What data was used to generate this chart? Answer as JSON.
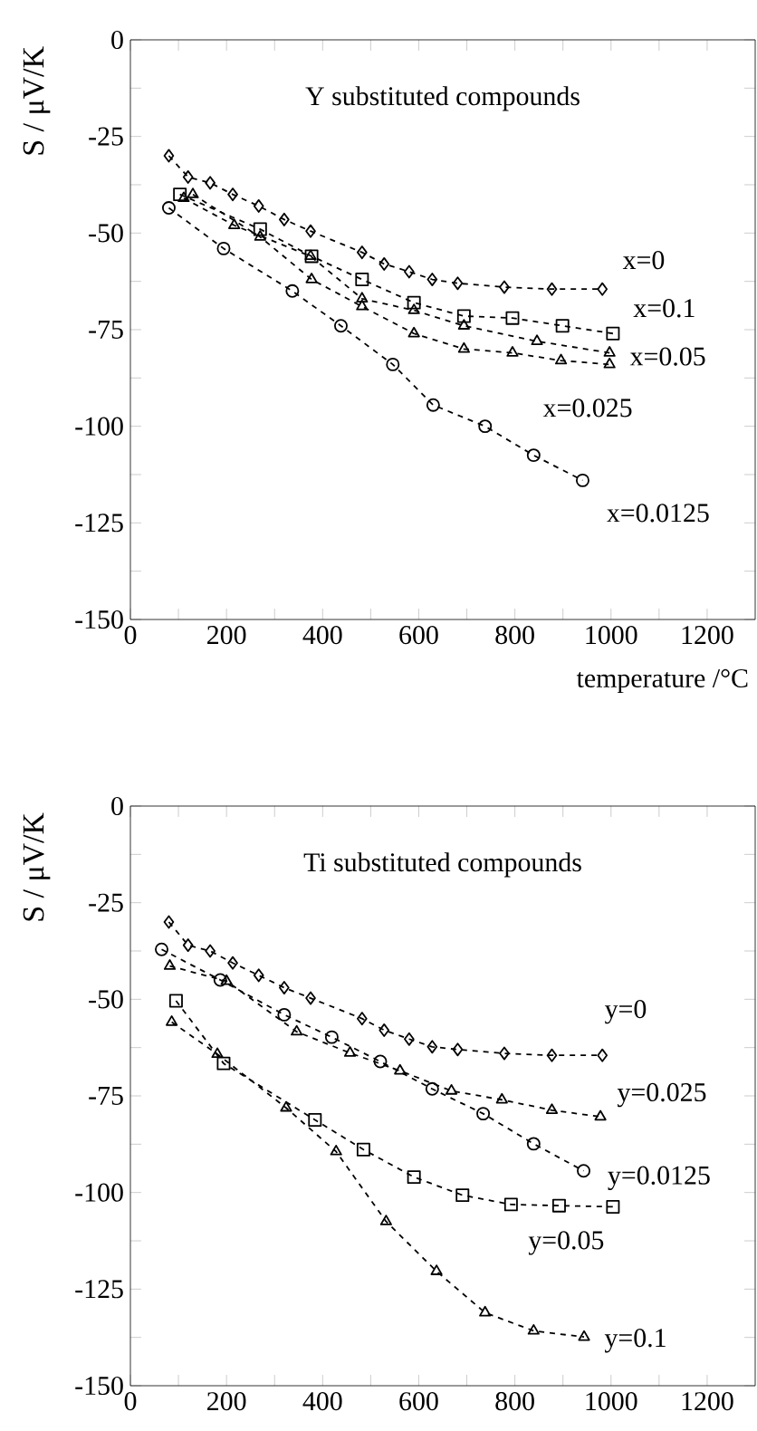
{
  "chart_data": [
    {
      "type": "line",
      "title": "Y substituted compounds",
      "xlabel": "temperature /°C",
      "ylabel": "S / μV/K",
      "xlim": [
        0,
        1300
      ],
      "ylim": [
        -150,
        0
      ],
      "xticks": [
        0,
        {
          "value": 100,
          "label": null
        },
        200,
        {
          "value": 300,
          "label": null
        },
        400,
        {
          "value": 500,
          "label": null
        },
        600,
        {
          "value": 700,
          "label": null
        },
        800,
        {
          "value": 900,
          "label": null
        },
        1000,
        {
          "value": 1100,
          "label": null
        },
        1200
      ],
      "yticks": [
        -150,
        {
          "value": -137.5,
          "label": null
        },
        -125,
        {
          "value": -112.5,
          "label": null
        },
        -100,
        {
          "value": -87.5,
          "label": null
        },
        -75,
        {
          "value": -62.5,
          "label": null
        },
        -50,
        {
          "value": -37.5,
          "label": null
        },
        -25,
        {
          "value": -12.5,
          "label": null
        },
        0
      ],
      "grid": false,
      "legend": false,
      "line_style": "dashed",
      "series": [
        {
          "name": "x=0",
          "color": "#000000",
          "marker": "diamond",
          "x": [
            80,
            120,
            166,
            213,
            267,
            320,
            375,
            482,
            528,
            580,
            628,
            681,
            778,
            877,
            982
          ],
          "values": [
            -30,
            -35.5,
            -37,
            -40,
            -43,
            -46.5,
            -49.5,
            -55,
            -58,
            -60,
            -62,
            -63,
            -64,
            -64.5,
            -64.5
          ]
        },
        {
          "name": "x=0.1",
          "color": "#000000",
          "marker": "square",
          "x": [
            103,
            270,
            377,
            482,
            590,
            694,
            795,
            899,
            1004
          ],
          "values": [
            -40,
            -49,
            -56,
            -62,
            -68,
            -71.5,
            -72,
            -74,
            -76
          ]
        },
        {
          "name": "x=0.05",
          "color": "#000000",
          "marker": "triangle",
          "x": [
            111,
            216,
            375,
            482,
            590,
            694,
            846,
            997
          ],
          "values": [
            -41,
            -48,
            -56,
            -67,
            -70,
            -74,
            -78,
            -81
          ]
        },
        {
          "name": "x=0.025",
          "color": "#000000",
          "marker": "triangle",
          "x": [
            130,
            270,
            377,
            482,
            590,
            694,
            795,
            896,
            997
          ],
          "values": [
            -40,
            -51,
            -62,
            -69,
            -76,
            -80,
            -81,
            -83,
            -84
          ]
        },
        {
          "name": "x=0.0125",
          "color": "#000000",
          "marker": "circle",
          "x": [
            80,
            194,
            337,
            438,
            546,
            630,
            738,
            839,
            941
          ],
          "values": [
            -43.5,
            -54,
            -65,
            -74,
            -84,
            -94.5,
            -100,
            -107.5,
            -114
          ]
        }
      ]
    },
    {
      "type": "line",
      "title": "Ti substituted compounds",
      "ylabel": "S / μV/K",
      "xlim": [
        0,
        1300
      ],
      "ylim": [
        -150,
        0
      ],
      "xticks": [
        0,
        {
          "value": 100,
          "label": null
        },
        200,
        {
          "value": 300,
          "label": null
        },
        400,
        {
          "value": 500,
          "label": null
        },
        600,
        {
          "value": 700,
          "label": null
        },
        800,
        {
          "value": 900,
          "label": null
        },
        1000,
        {
          "value": 1100,
          "label": null
        },
        1200
      ],
      "yticks": [
        -150,
        {
          "value": -137.5,
          "label": null
        },
        -125,
        {
          "value": -112.5,
          "label": null
        },
        -100,
        {
          "value": -87.5,
          "label": null
        },
        -75,
        {
          "value": -62.5,
          "label": null
        },
        -50,
        {
          "value": -37.5,
          "label": null
        },
        -25,
        {
          "value": -12.5,
          "label": null
        },
        0
      ],
      "grid": false,
      "legend": false,
      "line_style": "dashed",
      "series": [
        {
          "name": "y=0",
          "color": "#000000",
          "marker": "diamond",
          "x": [
            80,
            120,
            166,
            213,
            267,
            320,
            375,
            482,
            528,
            580,
            628,
            681,
            778,
            877,
            982
          ],
          "values": [
            -30,
            -36,
            -37.5,
            -40.6,
            -43.8,
            -47,
            -49.7,
            -55,
            -58,
            -60.3,
            -62.3,
            -63,
            -64,
            -64.5,
            -64.5
          ]
        },
        {
          "name": "y=0.025",
          "color": "#000000",
          "marker": "triangle",
          "x": [
            82,
            200,
            346,
            457,
            561,
            668,
            773,
            877,
            978
          ],
          "values": [
            -41.4,
            -45.3,
            -58.4,
            -63.9,
            -68.5,
            -73.7,
            -76,
            -78.7,
            -80.4
          ]
        },
        {
          "name": "y=0.0125",
          "color": "#000000",
          "marker": "circle",
          "x": [
            65,
            187,
            320,
            419,
            520,
            628,
            734,
            839,
            943
          ],
          "values": [
            -37.1,
            -45,
            -54,
            -59.8,
            -66.1,
            -73.2,
            -79.6,
            -87.4,
            -94.4
          ]
        },
        {
          "name": "y=0.05",
          "color": "#000000",
          "marker": "square",
          "x": [
            95,
            194,
            384,
            485,
            590,
            691,
            792,
            892,
            1004
          ],
          "values": [
            -50.4,
            -66.6,
            -81.2,
            -88.9,
            -96,
            -100.7,
            -103.1,
            -103.4,
            -103.7
          ]
        },
        {
          "name": "y=0.1",
          "color": "#000000",
          "marker": "triangle",
          "x": [
            86,
            181,
            324,
            428,
            532,
            637,
            738,
            839,
            944
          ],
          "values": [
            -55.9,
            -64.2,
            -78.1,
            -89.4,
            -107.5,
            -120.4,
            -131.1,
            -135.8,
            -137.4
          ]
        }
      ]
    }
  ]
}
